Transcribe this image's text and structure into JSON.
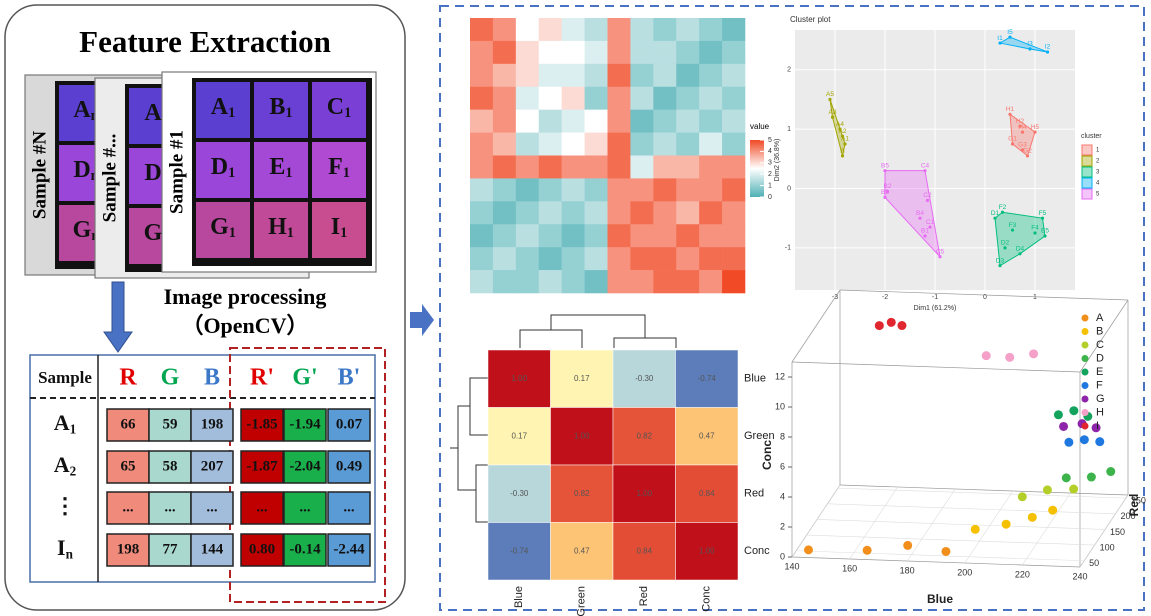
{
  "left": {
    "title": "Feature Extraction",
    "cards": [
      {
        "label": "Sample #N",
        "cells": [
          [
            "A",
            "n"
          ],
          [
            "D",
            "n"
          ],
          [
            "G",
            "n"
          ]
        ]
      },
      {
        "label": "Sample #...",
        "cells": [
          [
            "A."
          ],
          [
            "D."
          ],
          [
            "G."
          ]
        ]
      },
      {
        "label": "Sample #1",
        "cells": [
          [
            "A",
            "1"
          ],
          [
            "B",
            "1"
          ],
          [
            "C",
            "1"
          ],
          [
            "D",
            "1"
          ],
          [
            "E",
            "1"
          ],
          [
            "F",
            "1"
          ],
          [
            "G",
            "1"
          ],
          [
            "H",
            "1"
          ],
          [
            "I",
            "1"
          ]
        ]
      }
    ],
    "process": [
      "Image processing",
      "（OpenCV）"
    ],
    "table": {
      "header": [
        "Sample",
        "R",
        "G",
        "B",
        "R'",
        "G'",
        "B'"
      ],
      "rows": [
        {
          "sample": [
            "A",
            "1"
          ],
          "cells": [
            "66",
            "59",
            "198",
            "-1.85",
            "-1.94",
            "0.07"
          ]
        },
        {
          "sample": [
            "A",
            "2"
          ],
          "cells": [
            "65",
            "58",
            "207",
            "-1.87",
            "-2.04",
            "0.49"
          ]
        },
        {
          "sample": [
            "⋮"
          ],
          "cells": [
            "...",
            "...",
            "...",
            "...",
            "...",
            "..."
          ]
        },
        {
          "sample": [
            "I",
            "n"
          ],
          "cells": [
            "198",
            "77",
            "144",
            "0.80",
            "-0.14",
            "-2.44"
          ]
        }
      ]
    }
  },
  "heatmap": {
    "legend_title": "value",
    "lim": [
      0,
      5
    ],
    "ticks": [
      0,
      1,
      2,
      3,
      4,
      5
    ],
    "colors": [
      "#4fb0b5",
      "#ffffff",
      "#f04a26"
    ],
    "values": [
      [
        4.5,
        4,
        2.5,
        3,
        2,
        1.5,
        4,
        1.5,
        1,
        1.5,
        1,
        0.5
      ],
      [
        4,
        4.5,
        3,
        2.5,
        2.5,
        2,
        4,
        1.5,
        1.5,
        1,
        0.5,
        1
      ],
      [
        4,
        3.5,
        3,
        2,
        2,
        1.5,
        4.5,
        1,
        1.5,
        0.5,
        1,
        1.5
      ],
      [
        4.5,
        4,
        2,
        2.5,
        3,
        1,
        4,
        1.5,
        0.5,
        1,
        1.5,
        1
      ],
      [
        3.5,
        4,
        2.5,
        1.5,
        2,
        2.5,
        4,
        0.5,
        1,
        1.5,
        1,
        1.5
      ],
      [
        4,
        3.5,
        1.5,
        2,
        2.5,
        3,
        4.5,
        1,
        1.5,
        1,
        2,
        1
      ],
      [
        4,
        4.5,
        4,
        4.5,
        4,
        4,
        4.5,
        2,
        3.5,
        3.5,
        4,
        4
      ],
      [
        1.5,
        1,
        0.5,
        1,
        1.5,
        1,
        4,
        4,
        4.5,
        4,
        4,
        4.5
      ],
      [
        1,
        0.5,
        1,
        1.5,
        1,
        1.5,
        4,
        4.5,
        4,
        3.5,
        4.5,
        4
      ],
      [
        0.5,
        1,
        1.5,
        1,
        0.5,
        1,
        4.5,
        4,
        4,
        4.5,
        4,
        4
      ],
      [
        1,
        1.5,
        1,
        0.5,
        1,
        1.5,
        4,
        4.5,
        4.5,
        4,
        4.5,
        4.5
      ],
      [
        1.5,
        1,
        1,
        1.5,
        1,
        0.5,
        4,
        4,
        4.5,
        4.5,
        4,
        5
      ]
    ]
  },
  "correlation": {
    "rows": [
      "Blue",
      "Green",
      "Red",
      "Conc"
    ],
    "columns": [
      "Blue",
      "Green",
      "Red",
      "Conc"
    ],
    "values": [
      [
        1,
        0.17,
        -0.3,
        -0.74
      ],
      [
        0.17,
        1,
        0.82,
        0.47
      ],
      [
        -0.3,
        0.82,
        1,
        0.84
      ],
      [
        -0.74,
        0.47,
        0.84,
        1
      ]
    ],
    "value_labels": [
      [
        "1.00",
        "0.17",
        "-0.30",
        "-0.74"
      ],
      [
        "0.17",
        "1.00",
        "0.82",
        "0.47"
      ],
      [
        "-0.30",
        "0.82",
        "1.00",
        "0.84"
      ],
      [
        "-0.74",
        "0.47",
        "0.84",
        "1.00"
      ]
    ],
    "color_stops": [
      [
        -1,
        "#23409a"
      ],
      [
        -0.4,
        "#a6cde2"
      ],
      [
        0.1,
        "#ffffbf"
      ],
      [
        0.5,
        "#fdbf6f"
      ],
      [
        0.85,
        "#e34a33"
      ],
      [
        1,
        "#c0101a"
      ]
    ]
  },
  "cluster": {
    "title": "Cluster plot",
    "xlabel": "Dim1 (61.2%)",
    "ylabel": "Dim2 (36.8%)",
    "legend_title": "cluster",
    "xlim": [
      -3.8,
      1.8
    ],
    "ylim": [
      -1.71,
      2.67
    ],
    "xticks": [
      -3,
      -2,
      -1,
      0,
      1
    ],
    "yticks": [
      -1,
      0,
      1,
      2
    ],
    "clusters": [
      {
        "name": "1",
        "color": "#f8766d",
        "points": [
          {
            "label": "H1",
            "x": 0.5,
            "y": 1.25
          },
          {
            "label": "H2",
            "x": 0.7,
            "y": 1.05
          },
          {
            "label": "H4",
            "x": 0.75,
            "y": 0.95
          },
          {
            "label": "H5",
            "x": 1.0,
            "y": 0.95
          },
          {
            "label": "G1",
            "x": 0.55,
            "y": 0.75
          },
          {
            "label": "G3",
            "x": 0.75,
            "y": 0.65
          },
          {
            "label": "G2",
            "x": 0.85,
            "y": 0.55
          }
        ]
      },
      {
        "name": "2",
        "color": "#a3a500",
        "points": [
          {
            "label": "A5",
            "x": -3.1,
            "y": 1.5
          },
          {
            "label": "A3",
            "x": -3.05,
            "y": 1.2
          },
          {
            "label": "A4",
            "x": -2.9,
            "y": 1.0
          },
          {
            "label": "A2",
            "x": -2.85,
            "y": 0.88
          },
          {
            "label": "A1",
            "x": -2.8,
            "y": 0.75
          },
          {
            "label": "A",
            "x": -2.85,
            "y": 0.55
          }
        ]
      },
      {
        "name": "3",
        "color": "#00bf7d",
        "points": [
          {
            "label": "F2",
            "x": 0.35,
            "y": -0.4
          },
          {
            "label": "D1",
            "x": 0.2,
            "y": -0.5
          },
          {
            "label": "F5",
            "x": 1.15,
            "y": -0.5
          },
          {
            "label": "F3",
            "x": 0.55,
            "y": -0.7
          },
          {
            "label": "F4",
            "x": 1.0,
            "y": -0.75
          },
          {
            "label": "E5",
            "x": 1.2,
            "y": -0.8
          },
          {
            "label": "D2",
            "x": 0.4,
            "y": -1.0
          },
          {
            "label": "D4",
            "x": 0.7,
            "y": -1.1
          },
          {
            "label": "D3",
            "x": 0.3,
            "y": -1.3
          }
        ]
      },
      {
        "name": "4",
        "color": "#00b0f6",
        "points": [
          {
            "label": "I1",
            "x": 0.3,
            "y": 2.45
          },
          {
            "label": "I5",
            "x": 0.5,
            "y": 2.55
          },
          {
            "label": "I3",
            "x": 0.9,
            "y": 2.35
          },
          {
            "label": "I2",
            "x": 1.25,
            "y": 2.3
          }
        ]
      },
      {
        "name": "5",
        "color": "#e76bf3",
        "points": [
          {
            "label": "B5",
            "x": -2.0,
            "y": 0.3
          },
          {
            "label": "C4",
            "x": -1.2,
            "y": 0.3
          },
          {
            "label": "B2",
            "x": -1.95,
            "y": -0.05
          },
          {
            "label": "B3",
            "x": -2.0,
            "y": -0.15
          },
          {
            "label": "C2",
            "x": -1.15,
            "y": -0.2
          },
          {
            "label": "B4",
            "x": -1.3,
            "y": -0.5
          },
          {
            "label": "C1",
            "x": -1.1,
            "y": -0.65
          },
          {
            "label": "B1",
            "x": -1.2,
            "y": -0.8
          },
          {
            "label": "C5",
            "x": -0.9,
            "y": -1.15
          }
        ]
      }
    ]
  },
  "scatter3d": {
    "xlabel": "Blue",
    "ylabel": "Red",
    "zlabel": "Conc",
    "xlim": [
      140,
      240
    ],
    "ylim": [
      30,
      260
    ],
    "zlim": [
      0,
      13
    ],
    "xticks": [
      140,
      160,
      180,
      200,
      220,
      240
    ],
    "yticks": [
      50,
      100,
      150,
      200,
      250
    ],
    "zticks": [
      0,
      2,
      4,
      6,
      8,
      10,
      12
    ],
    "series": [
      {
        "name": "A",
        "color": "#f28e1c",
        "points": [
          [
            145,
            40,
            0.3
          ],
          [
            165,
            45,
            0.3
          ],
          [
            178,
            60,
            0.4
          ],
          [
            192,
            50,
            0.3
          ]
        ]
      },
      {
        "name": "B",
        "color": "#f5c000",
        "points": [
          [
            200,
            80,
            1.2
          ],
          [
            210,
            90,
            1.4
          ],
          [
            218,
            105,
            1.6
          ],
          [
            224,
            120,
            1.8
          ]
        ]
      },
      {
        "name": "C",
        "color": "#b5cf2a",
        "points": [
          [
            212,
            140,
            2.2
          ],
          [
            220,
            150,
            2.5
          ],
          [
            228,
            165,
            2.3
          ]
        ]
      },
      {
        "name": "D",
        "color": "#3cb44b",
        "points": [
          [
            224,
            185,
            2.6
          ],
          [
            232,
            195,
            2.5
          ],
          [
            238,
            205,
            2.7
          ]
        ]
      },
      {
        "name": "E",
        "color": "#14a35c",
        "points": [
          [
            222,
            175,
            7.0
          ],
          [
            227,
            180,
            7.2
          ],
          [
            232,
            178,
            6.9
          ]
        ]
      },
      {
        "name": "F",
        "color": "#1e78e0",
        "points": [
          [
            226,
            170,
            5.3
          ],
          [
            231,
            175,
            5.4
          ],
          [
            236,
            180,
            5.2
          ]
        ]
      },
      {
        "name": "G",
        "color": "#8e24aa",
        "points": [
          [
            224,
            172,
            6.3
          ],
          [
            230,
            178,
            6.4
          ],
          [
            235,
            176,
            6.2
          ]
        ]
      },
      {
        "name": "H",
        "color": "#f4a0c8",
        "points": [
          [
            196,
            188,
            10.5
          ],
          [
            204,
            190,
            10.4
          ],
          [
            212,
            194,
            10.6
          ]
        ]
      },
      {
        "name": "I",
        "color": "#e0262e",
        "points": [
          [
            158,
            200,
            12.0
          ],
          [
            162,
            202,
            12.2
          ],
          [
            166,
            198,
            12.1
          ]
        ]
      }
    ]
  }
}
